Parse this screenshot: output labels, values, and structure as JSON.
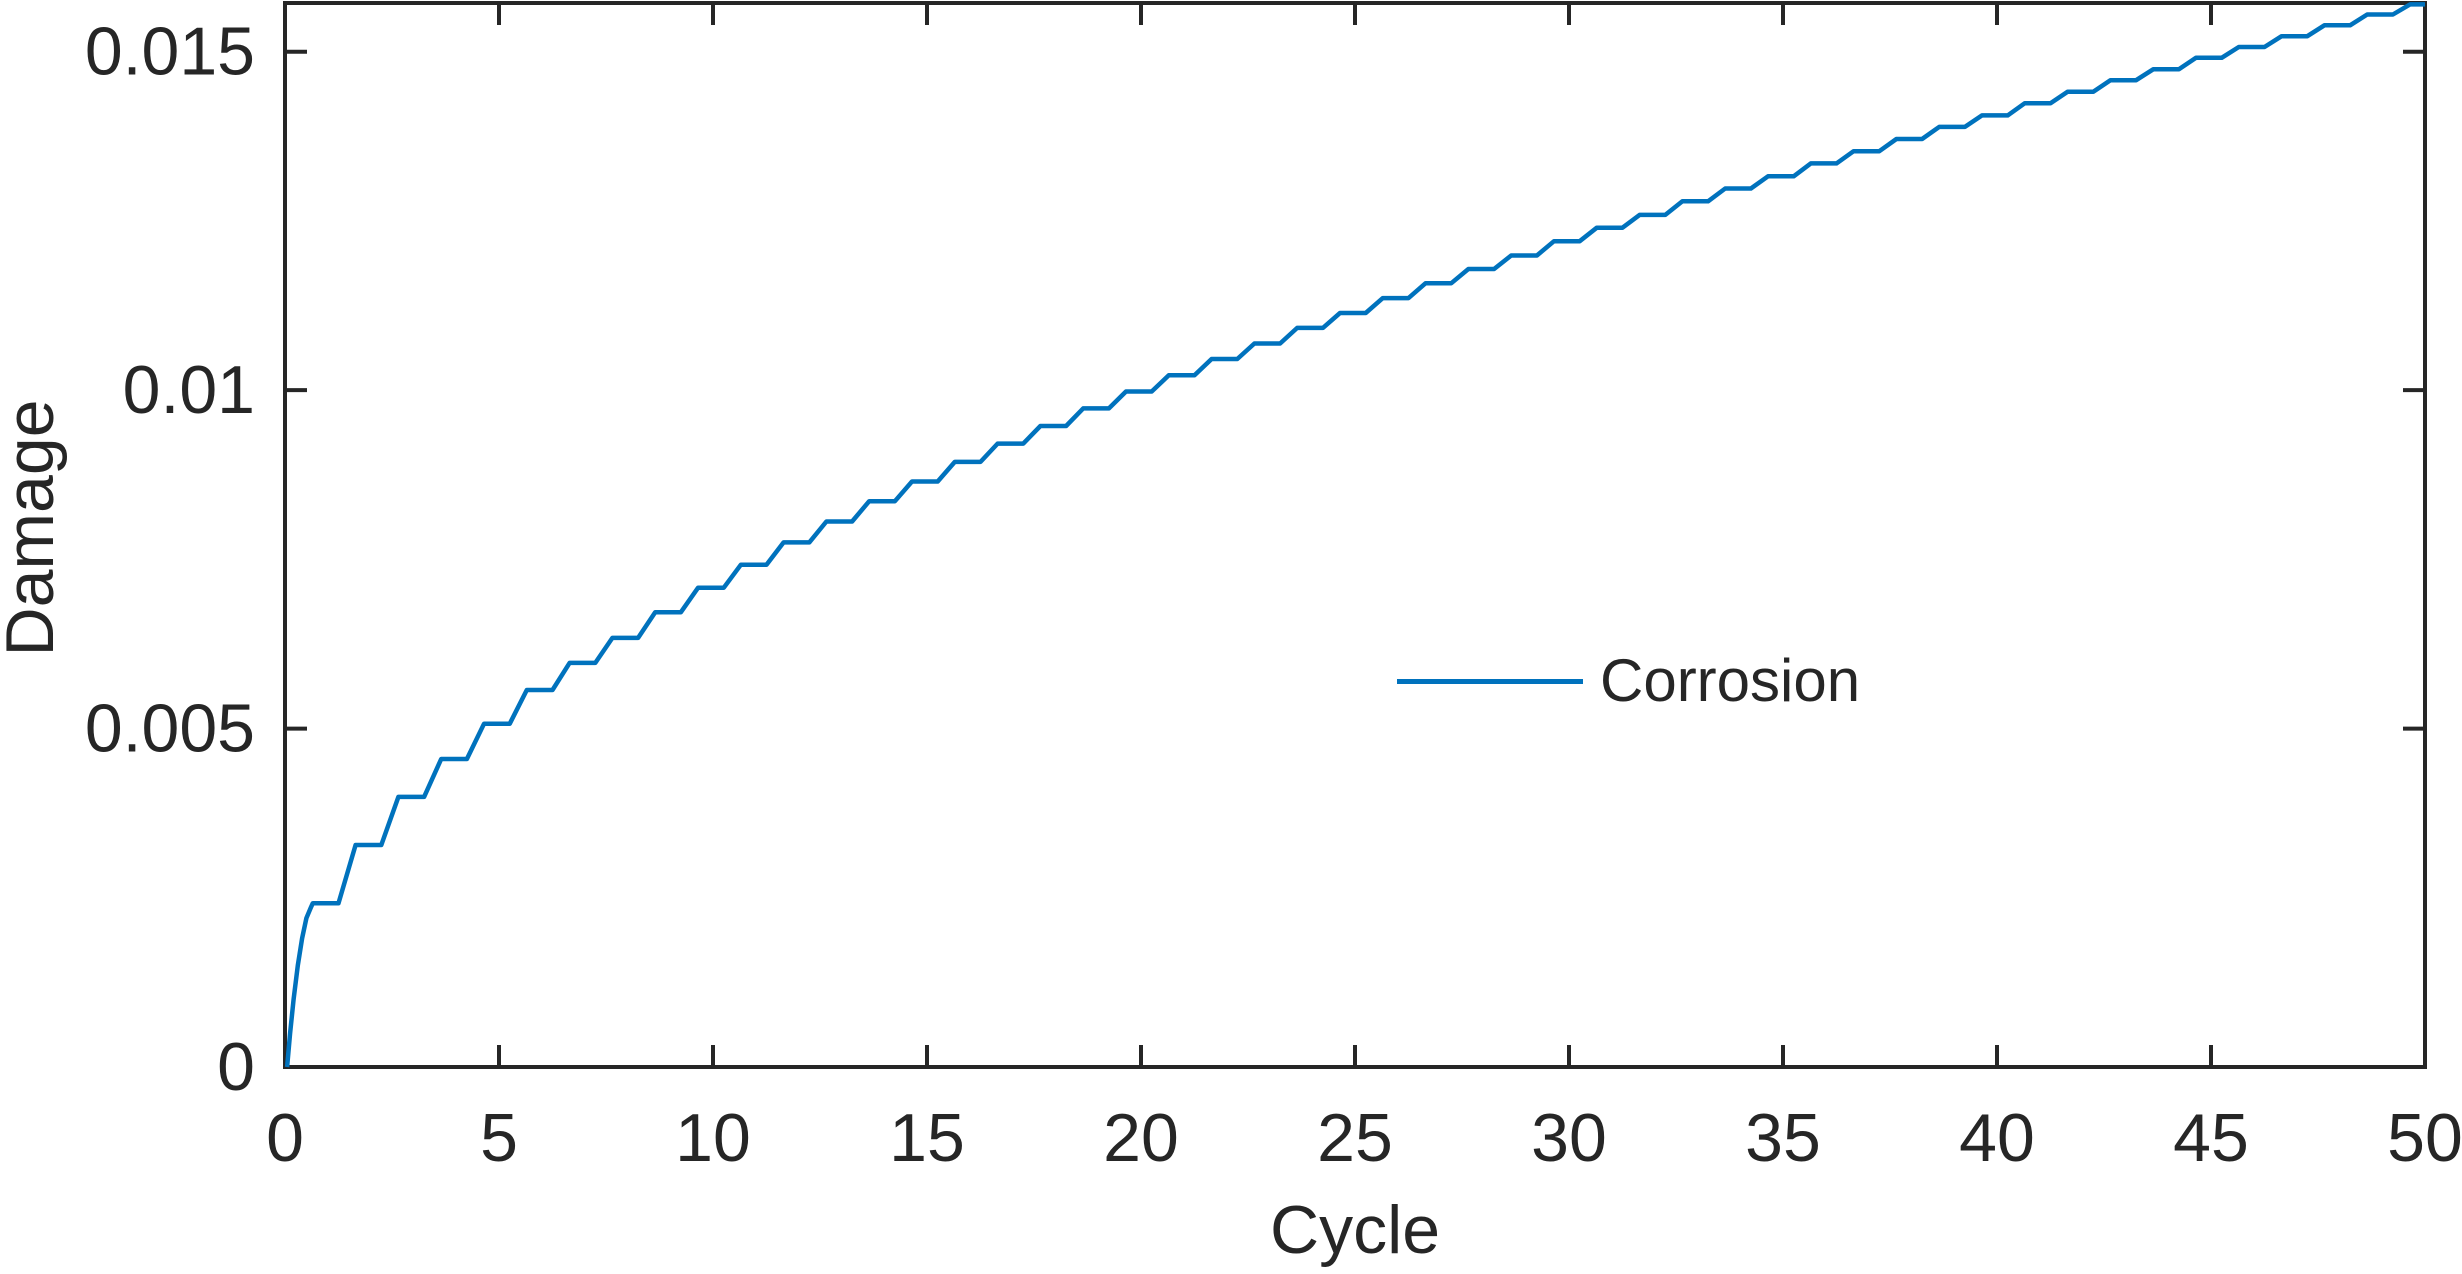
{
  "figure": {
    "background": "#ffffff",
    "axis_color": "#262626",
    "accent_color": "#0072BD"
  },
  "chart_data": {
    "type": "line",
    "title": "",
    "xlabel": "Cycle",
    "ylabel": "Damage",
    "xlim": [
      0,
      50
    ],
    "ylim": [
      0,
      0.01572
    ],
    "grid": false,
    "box": true,
    "tick_direction": "in",
    "x_ticks": [
      0,
      5,
      10,
      15,
      20,
      25,
      30,
      35,
      40,
      45,
      50
    ],
    "x_tick_labels": [
      "0",
      "5",
      "10",
      "15",
      "20",
      "25",
      "30",
      "35",
      "40",
      "45",
      "50"
    ],
    "y_ticks": [
      0,
      0.005,
      0.01,
      0.015
    ],
    "y_tick_labels": [
      "0",
      "0.005",
      "0.01",
      "0.015"
    ],
    "legend": {
      "position": "inside-right-center",
      "box": false,
      "entries": [
        {
          "label": "Corrosion",
          "color": "#0072BD",
          "line_style": "solid"
        }
      ]
    },
    "series": [
      {
        "name": "Corrosion",
        "color": "#0072BD",
        "style": "staircase",
        "cycle_start": 1,
        "step_plateau_start_offset": -0.35,
        "step_plateau_end_offset": 0.25,
        "initial_rise_points": [
          [
            0.05,
            0.0
          ],
          [
            0.12,
            0.0005
          ],
          [
            0.2,
            0.001
          ],
          [
            0.3,
            0.0015
          ],
          [
            0.4,
            0.0019
          ],
          [
            0.5,
            0.0022
          ],
          [
            0.6,
            0.00235
          ],
          [
            0.65,
            0.00242
          ]
        ],
        "plateau_values": [
          0.00242,
          0.00328,
          0.00399,
          0.00455,
          0.00507,
          0.00557,
          0.00597,
          0.00634,
          0.00672,
          0.00708,
          0.00742,
          0.00775,
          0.00806,
          0.00836,
          0.00865,
          0.00894,
          0.00921,
          0.00947,
          0.00973,
          0.00998,
          0.01022,
          0.01046,
          0.01069,
          0.01092,
          0.01114,
          0.01136,
          0.01158,
          0.01179,
          0.01199,
          0.0122,
          0.0124,
          0.01259,
          0.01279,
          0.01298,
          0.01316,
          0.01335,
          0.01353,
          0.01371,
          0.01389,
          0.01406,
          0.01424,
          0.01441,
          0.01458,
          0.01474,
          0.01491,
          0.01507,
          0.01523,
          0.01539,
          0.01555,
          0.0157
        ]
      }
    ]
  }
}
